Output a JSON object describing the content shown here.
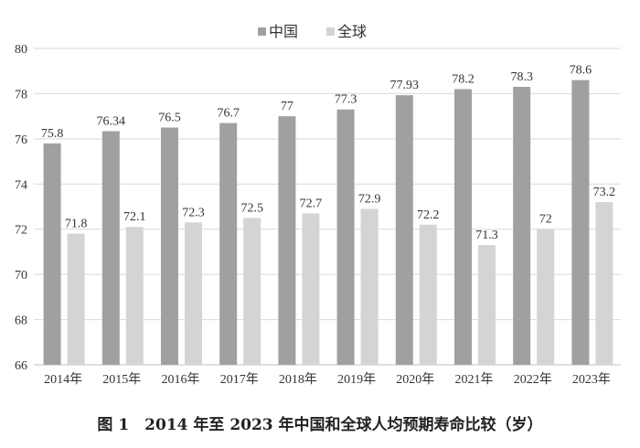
{
  "chart_data": {
    "type": "bar",
    "title": "图 1　2014 年至 2023 年中国和全球人均预期寿命比较（岁）",
    "categories": [
      "2014年",
      "2015年",
      "2016年",
      "2017年",
      "2018年",
      "2019年",
      "2020年",
      "2021年",
      "2022年",
      "2023年"
    ],
    "series": [
      {
        "name": "中国",
        "color": "#a0a0a0",
        "values": [
          75.8,
          76.34,
          76.5,
          76.7,
          77,
          77.3,
          77.93,
          78.2,
          78.3,
          78.6
        ],
        "labels": [
          "75.8",
          "76.34",
          "76.5",
          "76.7",
          "77",
          "77.3",
          "77.93",
          "78.2",
          "78.3",
          "78.6"
        ]
      },
      {
        "name": "全球",
        "color": "#d4d4d4",
        "values": [
          71.8,
          72.1,
          72.3,
          72.5,
          72.7,
          72.9,
          72.2,
          71.3,
          72,
          73.2
        ],
        "labels": [
          "71.8",
          "72.1",
          "72.3",
          "72.5",
          "72.7",
          "72.9",
          "72.2",
          "71.3",
          "72",
          "73.2"
        ]
      }
    ],
    "ylim": [
      66,
      80
    ],
    "yticks": [
      "66",
      "68",
      "70",
      "72",
      "74",
      "76",
      "78",
      "80"
    ],
    "xlabel": "",
    "ylabel": "",
    "grid": true,
    "legend": "top-center"
  }
}
